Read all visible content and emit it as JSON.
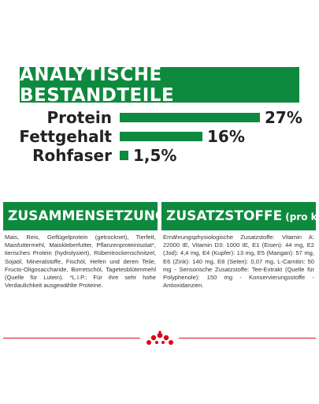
{
  "analysis": {
    "title": "ANALYTISCHE BESTANDTEILE",
    "rows": [
      {
        "label": "Protein",
        "value": "27%",
        "fraction": 1.0
      },
      {
        "label": "Fettgehalt",
        "value": "16%",
        "fraction": 0.59
      },
      {
        "label": "Rohfaser",
        "value": "1,5%",
        "fraction": 0.06
      }
    ]
  },
  "composition": {
    "title": "ZUSAMMENSETZUNG",
    "text": "Mais, Reis, Geflügelprotein (getrocknet), Tierfett, Maisfuttermehl, Maiskleberfutter, Pflanzenproteinisolat*, tierisches Protein (hydrolysiert), Rübentrockenschnitzel, Sojaöl, Mineralstoffe, Fischöl, Hefen und deren Teile, Fructo-Oligosaccharide, Borretschöl, Tagetesblütenmehl (Quelle für Lutein). *L.I.P.: Für ihre sehr hohe Verdaulichkeit ausgewählte Proteine."
  },
  "additives": {
    "title": "ZUSATZSTOFFE",
    "title_suffix": "(pro kg)",
    "text": "Ernährungsphysiologische Zusatzstoffe: Vitamin A: 22000 IE, Vitamin D3: 1000 IE, E1 (Eisen): 44 mg, E2 (Jod): 4,4 mg, E4 (Kupfer): 13 mg, E5 (Mangan): 57 mg, E6 (Zink): 140 mg, E8 (Selen): 0,07 mg, L-Carnitin: 50 mg - Sensorische Zusatzstoffe: Tee-Extrakt (Quelle für Polyphenole): 150 mg - Konservierungsstoffe - Antioxidanzien."
  },
  "logo": {
    "icon": "royal-canin-crown-icon"
  },
  "colors": {
    "accent": "#0e8a3e",
    "divider": "#d8172a",
    "logo": "#e2001a"
  }
}
